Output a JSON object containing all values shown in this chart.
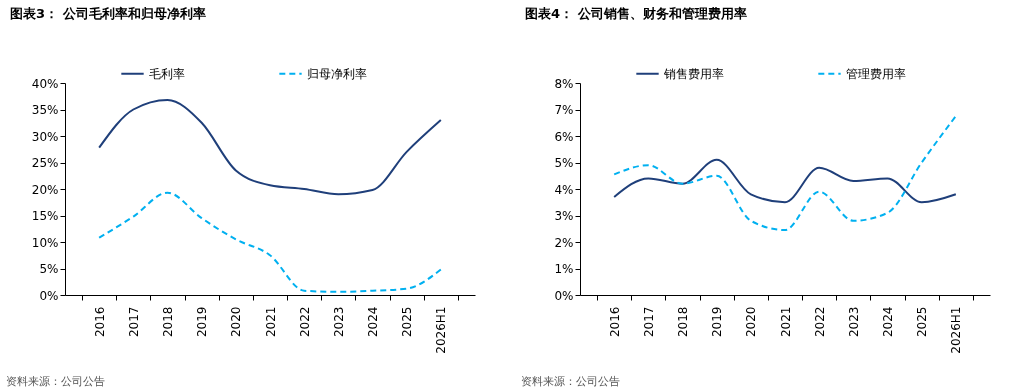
{
  "chart_data": [
    {
      "type": "line",
      "title": "图表3：  公司毛利率和归母净利率",
      "categories": [
        "2016",
        "2017",
        "2018",
        "2019",
        "2020",
        "2021",
        "2022",
        "2023",
        "2024",
        "2025",
        "2026H1"
      ],
      "series": [
        {
          "name": "毛利率",
          "color": "#1f3f7a",
          "line_style": "solid",
          "values": [
            27.8,
            35,
            36.8,
            32.5,
            23.5,
            20.7,
            20,
            19,
            19.8,
            27,
            33
          ]
        },
        {
          "name": "归母净利率",
          "color": "#00b0f0",
          "line_style": "dashed",
          "values": [
            10.8,
            14.8,
            19.3,
            14.5,
            10.5,
            7.5,
            0.8,
            0.6,
            0.8,
            1.2,
            4.8
          ]
        }
      ],
      "ylim": [
        0,
        40
      ],
      "yticks": [
        {
          "value": 0,
          "label": "0%"
        },
        {
          "value": 5,
          "label": "5%"
        },
        {
          "value": 10,
          "label": "10%"
        },
        {
          "value": 15,
          "label": "15%"
        },
        {
          "value": 20,
          "label": "20%"
        },
        {
          "value": 25,
          "label": "25%"
        },
        {
          "value": 30,
          "label": "30%"
        },
        {
          "value": 35,
          "label": "35%"
        },
        {
          "value": 40,
          "label": "40%"
        }
      ],
      "legend": "top",
      "grid": false,
      "annotations": [
        "资料来源：公司公告"
      ]
    },
    {
      "type": "line",
      "title": "图表4：  公司销售、财务和管理费用率",
      "categories": [
        "2016",
        "2017",
        "2018",
        "2019",
        "2020",
        "2021",
        "2022",
        "2023",
        "2024",
        "2025",
        "2026H1"
      ],
      "series": [
        {
          "name": "销售费用率",
          "color": "#1f3f7a",
          "line_style": "solid",
          "values": [
            3.7,
            4.4,
            4.2,
            5.1,
            3.8,
            3.5,
            4.8,
            4.3,
            4.4,
            3.5,
            3.8
          ]
        },
        {
          "name": "管理费用率",
          "color": "#00b0f0",
          "line_style": "dashed",
          "values": [
            4.55,
            4.9,
            4.2,
            4.5,
            2.8,
            2.45,
            3.9,
            2.8,
            3.1,
            5,
            6.75
          ]
        }
      ],
      "ylim": [
        0,
        8
      ],
      "yticks": [
        {
          "value": 0,
          "label": "0%"
        },
        {
          "value": 1,
          "label": "1%"
        },
        {
          "value": 2,
          "label": "2%"
        },
        {
          "value": 3,
          "label": "3%"
        },
        {
          "value": 4,
          "label": "4%"
        },
        {
          "value": 5,
          "label": "5%"
        },
        {
          "value": 6,
          "label": "6%"
        },
        {
          "value": 7,
          "label": "7%"
        },
        {
          "value": 8,
          "label": "8%"
        }
      ],
      "legend": "top",
      "grid": false,
      "annotations": [
        "资料来源：公司公告"
      ]
    }
  ]
}
